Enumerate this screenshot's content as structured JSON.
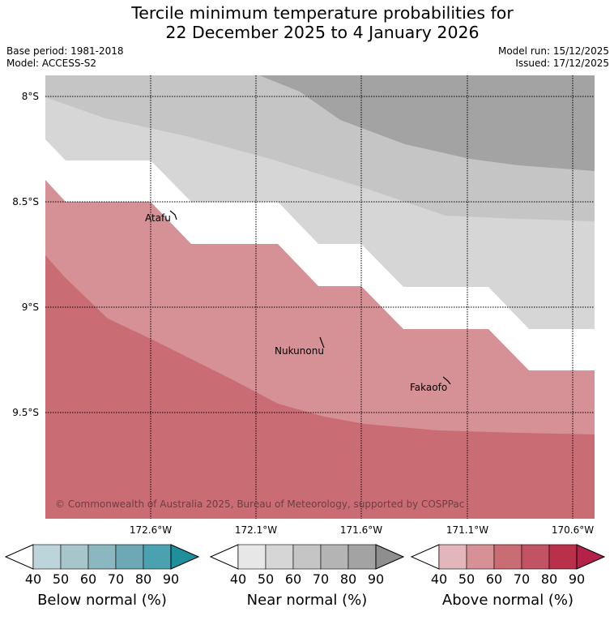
{
  "title_line1": "Tercile minimum temperature probabilities for",
  "title_line2": "22 December 2025 to 4 January 2026",
  "meta": {
    "base_period": "Base period: 1981-2018",
    "model": "Model: ACCESS-S2",
    "model_run": "Model run: 15/12/2025",
    "issued": "Issued: 17/12/2025"
  },
  "map": {
    "lat_labels": [
      "8°S",
      "8.5°S",
      "9°S",
      "9.5°S"
    ],
    "lon_labels": [
      "172.6°W",
      "172.1°W",
      "171.6°W",
      "171.1°W",
      "170.6°W"
    ],
    "places": [
      "Atafu",
      "Nukunonu",
      "Fakaofo"
    ],
    "copyright": "© Commonwealth of Australia 2025, Bureau of Meteorology, supported by COSPPac",
    "colors": {
      "near_40": "#d6d6d6",
      "near_50": "#c5c5c5",
      "near_60": "#a3a3a3",
      "above_50": "#d69196",
      "above_60": "#ca6c74"
    }
  },
  "colorbars": [
    {
      "title": "Below normal (%)",
      "ticks": [
        "40",
        "50",
        "60",
        "70",
        "80",
        "90"
      ],
      "colors": [
        "#bcd4da",
        "#a6c6cc",
        "#8ab7c0",
        "#6da9b5",
        "#4aa2b1",
        "#1f8f9c"
      ]
    },
    {
      "title": "Near normal (%)",
      "ticks": [
        "40",
        "50",
        "60",
        "70",
        "80",
        "90"
      ],
      "colors": [
        "#e7e7e7",
        "#d6d6d6",
        "#c5c5c5",
        "#b4b4b4",
        "#a3a3a3",
        "#8e8e8e"
      ]
    },
    {
      "title": "Above normal (%)",
      "ticks": [
        "40",
        "50",
        "60",
        "70",
        "80",
        "90"
      ],
      "colors": [
        "#e2b6bb",
        "#d69196",
        "#ca6c74",
        "#c25364",
        "#b9304a",
        "#b4224a"
      ]
    }
  ]
}
